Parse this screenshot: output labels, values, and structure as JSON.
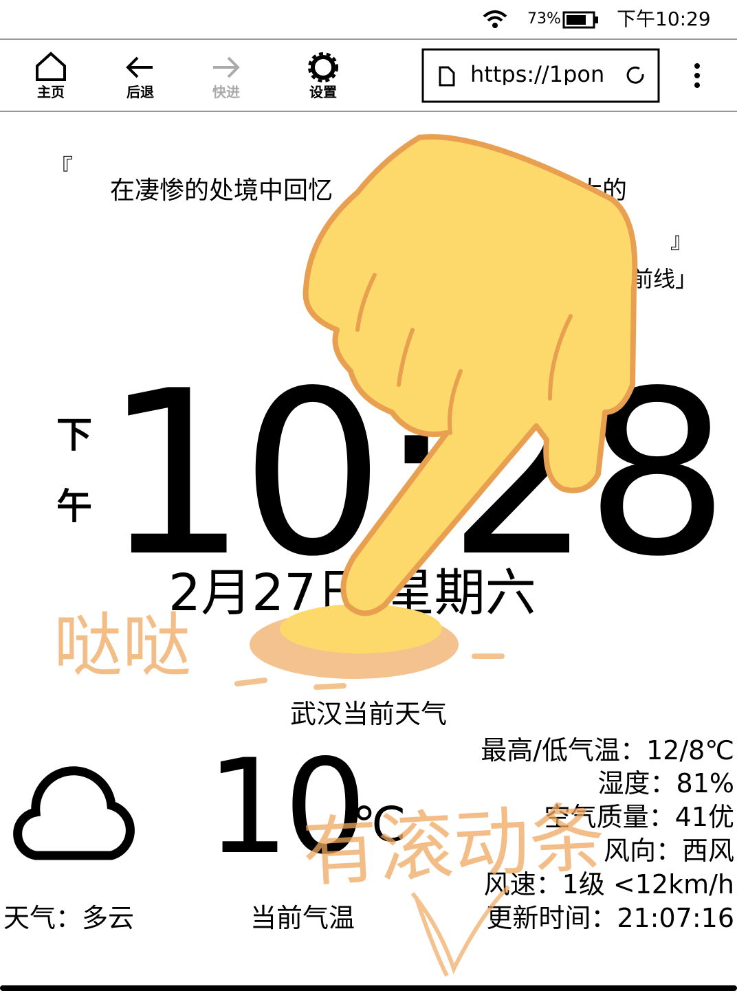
{
  "status_bar": {
    "battery": "73%",
    "time": "下午10:29"
  },
  "toolbar": {
    "buttons": [
      "主页",
      "后退",
      "快进",
      "设置"
    ],
    "url": "https://1pon"
  },
  "quote": {
    "open": "『",
    "line1": "在凄惨的处境中回忆",
    "line1_end": "大的",
    "close": "』",
    "source_end": "前线」"
  },
  "clock": {
    "period_1": "下",
    "period_2": "午",
    "time": "10:28",
    "date": "2月27日 星期六"
  },
  "annotations": {
    "tap": "哒哒",
    "scroll": "有滚动条"
  },
  "weather": {
    "title": "武汉当前天气",
    "temperature": "10",
    "unit": "℃",
    "condition": "天气：多云",
    "temperature_label": "当前气温",
    "details": [
      "最高/低气温：12/8℃",
      "湿度：81%",
      "空气质量：41优",
      "风向：西风",
      "风速：1级 <12km/h",
      "更新时间：21:07:16"
    ]
  }
}
